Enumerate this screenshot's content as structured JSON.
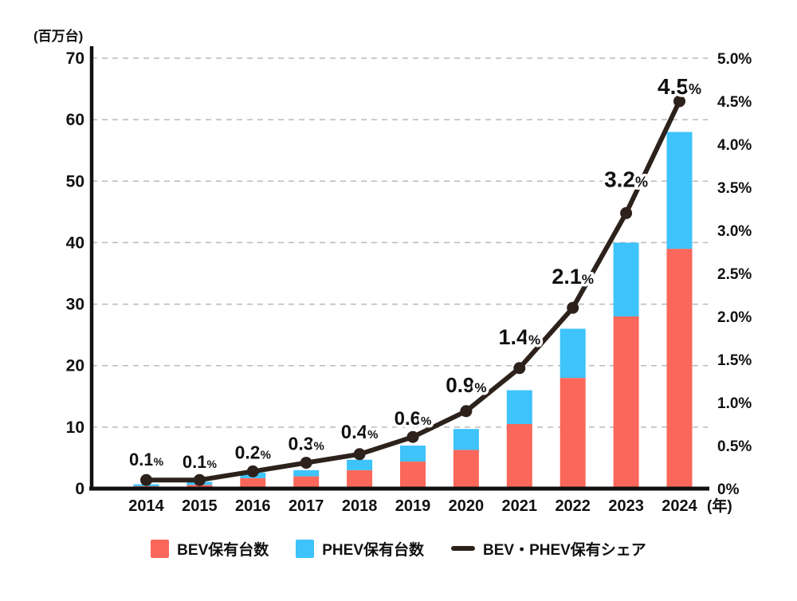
{
  "chart_data": {
    "type": "combo-stacked-bar-line",
    "categories": [
      "2014",
      "2015",
      "2016",
      "2017",
      "2018",
      "2019",
      "2020",
      "2021",
      "2022",
      "2023",
      "2024"
    ],
    "x_axis": {
      "suffix_label": "(年)"
    },
    "left_axis": {
      "title": "(百万台)",
      "min": 0,
      "max": 70,
      "ticks": [
        0,
        10,
        20,
        30,
        40,
        50,
        60,
        70
      ]
    },
    "right_axis": {
      "min": 0,
      "max": 5,
      "labels": [
        "0%",
        "0.5%",
        "1.0%",
        "1.5%",
        "2.0%",
        "2.5%",
        "3.0%",
        "3.5%",
        "4.0%",
        "4.5%",
        "5.0%"
      ]
    },
    "series": [
      {
        "name": "BEV保有台数",
        "type": "bar",
        "color": "#fb675a",
        "values": [
          0.4,
          0.6,
          1.7,
          2.0,
          3.0,
          4.4,
          6.3,
          10.5,
          18,
          28,
          39
        ]
      },
      {
        "name": "PHEV保有台数",
        "type": "bar",
        "color": "#3ec3fb",
        "values": [
          0.3,
          0.5,
          0.9,
          1.0,
          1.7,
          2.6,
          3.4,
          5.5,
          8,
          12,
          19
        ]
      },
      {
        "name": "BEV・PHEV保有シェア",
        "type": "line",
        "axis": "right",
        "color": "#2d211b",
        "values": [
          0.1,
          0.1,
          0.2,
          0.3,
          0.4,
          0.6,
          0.9,
          1.4,
          2.1,
          3.2,
          4.5
        ],
        "point_labels": [
          "0.1%",
          "0.1%",
          "0.2%",
          "0.3%",
          "0.4%",
          "0.6%",
          "0.9%",
          "1.4%",
          "2.1%",
          "3.2%",
          "4.5%"
        ]
      }
    ],
    "grid": "dashed-horizontal",
    "legend_position": "bottom",
    "colors": {
      "grid": "#b9b9b9",
      "axis": "#111111",
      "label_text": "#241a14",
      "background": "#ffffff"
    }
  }
}
